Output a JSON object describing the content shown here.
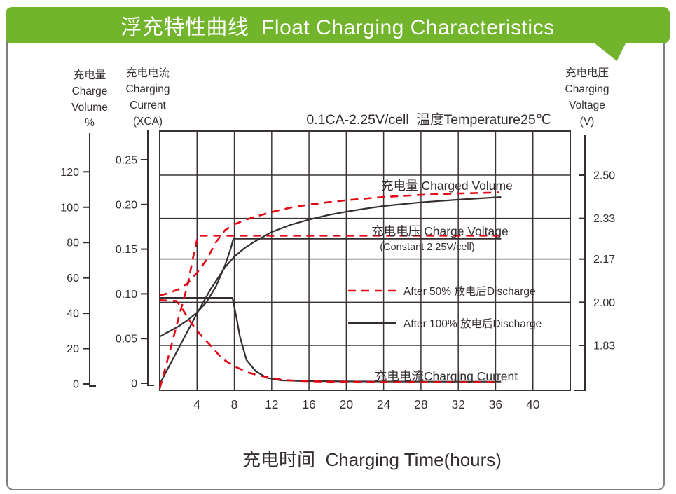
{
  "banner": {
    "title": "浮充特性曲线  Float Charging Characteristics"
  },
  "page": {
    "background": "#ffffff",
    "border_color": "#7f7f7f",
    "banner_color": "#72b52c"
  },
  "chart_data": {
    "type": "line",
    "title": "0.1CA-2.25V/cell  温度Temperature25℃",
    "xlabel": "充电时间  Charging Time(hours)",
    "x_axis": {
      "unit": "hours",
      "ticks": [
        4,
        8,
        12,
        16,
        20,
        24,
        28,
        32,
        36,
        40
      ],
      "range": [
        0,
        44
      ],
      "grid": true
    },
    "axes": {
      "charge_volume": {
        "label_lines": [
          "充电量",
          "Charge",
          "Volume",
          "%"
        ],
        "ticks": [
          0,
          20,
          40,
          60,
          80,
          100,
          120
        ],
        "range": [
          0,
          120
        ]
      },
      "charging_current": {
        "label_lines": [
          "充电电流",
          "Charging",
          "Current",
          "(XCA)"
        ],
        "ticks": [
          "0",
          "0.05",
          "0.10",
          "0.15",
          "0.20",
          "0.25"
        ],
        "range": [
          0,
          0.25
        ]
      },
      "charging_voltage": {
        "label_lines": [
          "充电电压",
          "Charging",
          "Voltage",
          "(V)"
        ],
        "ticks": [
          "2.50",
          "2.33",
          "2.17",
          "2.00",
          "1.83"
        ],
        "range": [
          1.83,
          2.5
        ],
        "grid": true
      }
    },
    "curve_labels": {
      "charged_volume": "充电量 Charged Volume",
      "charge_voltage": "充电电压 Charge Voltage",
      "charge_voltage_sub": "(Constant 2.25V/cell)",
      "charging_current": "充电电流Charging Current"
    },
    "legend": [
      {
        "label": "After 50% 放电后Discharge",
        "style": "red-dashed"
      },
      {
        "label": "After 100% 放电后Discharge",
        "style": "black-solid"
      }
    ],
    "colors": {
      "red": "#e30613",
      "black": "#352e30"
    },
    "series": [
      {
        "name": "charged-volume-after-50-discharge",
        "color": "red",
        "dashed": true,
        "scale": "pct",
        "points": [
          [
            0,
            50
          ],
          [
            1,
            51.5
          ],
          [
            2,
            53.5
          ],
          [
            3,
            57
          ],
          [
            4,
            63
          ],
          [
            5,
            70
          ],
          [
            6,
            80
          ],
          [
            7,
            87
          ],
          [
            8,
            90.3
          ],
          [
            9,
            92.5
          ],
          [
            10,
            94.3
          ],
          [
            12,
            97.3
          ],
          [
            14,
            99.8
          ],
          [
            16,
            101.5
          ],
          [
            18,
            102.8
          ],
          [
            20,
            104
          ],
          [
            24,
            105.8
          ],
          [
            28,
            107
          ],
          [
            32,
            107.8
          ],
          [
            36.4,
            108.4
          ]
        ]
      },
      {
        "name": "charged-volume-after-100-discharge",
        "color": "black",
        "dashed": false,
        "scale": "pct",
        "points": [
          [
            0,
            0
          ],
          [
            2,
            20
          ],
          [
            4,
            40
          ],
          [
            5.5,
            54
          ],
          [
            7,
            66
          ],
          [
            8,
            72
          ],
          [
            9,
            76.5
          ],
          [
            10,
            80
          ],
          [
            12,
            86
          ],
          [
            14,
            90
          ],
          [
            16,
            93
          ],
          [
            18,
            95.5
          ],
          [
            20,
            97.5
          ],
          [
            22,
            99.2
          ],
          [
            24,
            100.7
          ],
          [
            28,
            102.8
          ],
          [
            32,
            104.3
          ],
          [
            36.6,
            105.8
          ]
        ]
      },
      {
        "name": "charge-voltage-after-50-discharge",
        "color": "red",
        "dashed": true,
        "scale": "volt",
        "points": [
          [
            0,
            1.66
          ],
          [
            1,
            1.795
          ],
          [
            2,
            1.935
          ],
          [
            3,
            2.07
          ],
          [
            3.6,
            2.18
          ],
          [
            4.1,
            2.262
          ],
          [
            36.4,
            2.262
          ]
        ]
      },
      {
        "name": "charge-voltage-after-100-discharge",
        "color": "black",
        "dashed": false,
        "scale": "volt",
        "points": [
          [
            0,
            1.865
          ],
          [
            1,
            1.885
          ],
          [
            2,
            1.905
          ],
          [
            3,
            1.93
          ],
          [
            4,
            1.96
          ],
          [
            5,
            2.0
          ],
          [
            6,
            2.06
          ],
          [
            7,
            2.145
          ],
          [
            7.6,
            2.21
          ],
          [
            7.9,
            2.25
          ],
          [
            36.6,
            2.25
          ]
        ]
      },
      {
        "name": "charging-current-after-50-discharge",
        "color": "red",
        "dashed": true,
        "scale": "xca",
        "points": [
          [
            0,
            0.093
          ],
          [
            1.8,
            0.092
          ],
          [
            2.5,
            0.082
          ],
          [
            3.2,
            0.07
          ],
          [
            4.3,
            0.055
          ],
          [
            5.3,
            0.044
          ],
          [
            6.7,
            0.0275
          ],
          [
            8,
            0.019
          ],
          [
            9.5,
            0.0118
          ],
          [
            11,
            0.0078
          ],
          [
            13,
            0.004
          ],
          [
            15,
            0.0025
          ],
          [
            18,
            0.0017
          ],
          [
            24,
            0.0013
          ],
          [
            36.4,
            0.0012
          ]
        ]
      },
      {
        "name": "charging-current-after-100-discharge",
        "color": "black",
        "dashed": false,
        "scale": "xca",
        "points": [
          [
            0,
            0.0955
          ],
          [
            7.8,
            0.0955
          ],
          [
            8.2,
            0.075
          ],
          [
            8.6,
            0.052
          ],
          [
            9.3,
            0.026
          ],
          [
            10.3,
            0.0133
          ],
          [
            11.5,
            0.006
          ],
          [
            13,
            0.0032
          ],
          [
            15,
            0.0025
          ],
          [
            20,
            0.002
          ],
          [
            28,
            0.0018
          ],
          [
            36.6,
            0.0018
          ]
        ]
      }
    ]
  }
}
